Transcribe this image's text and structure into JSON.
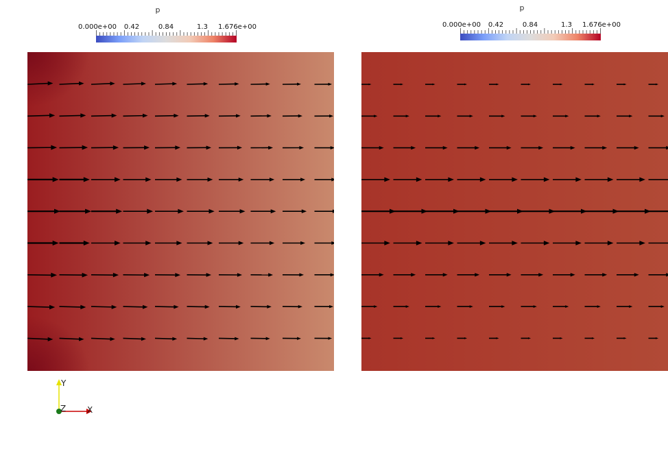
{
  "left_view": {
    "colorbar": {
      "title": "p",
      "tick_labels": [
        "0.000e+00",
        "0.42",
        "0.84",
        "1.3",
        "1.676e+00"
      ],
      "range": [
        0,
        1.676
      ]
    },
    "field": {
      "color_left": "#9a1d20",
      "color_right": "#c9896d"
    }
  },
  "right_view": {
    "colorbar": {
      "title": "p",
      "tick_labels": [
        "0.000e+00",
        "0.42",
        "0.84",
        "1.3",
        "1.676e+00"
      ],
      "range": [
        0,
        1.676
      ]
    },
    "field": {
      "color_left": "#a83429",
      "color_right": "#b14a36"
    }
  },
  "axes_triad": {
    "x_label": "X",
    "y_label": "Y",
    "z_label": "Z"
  }
}
